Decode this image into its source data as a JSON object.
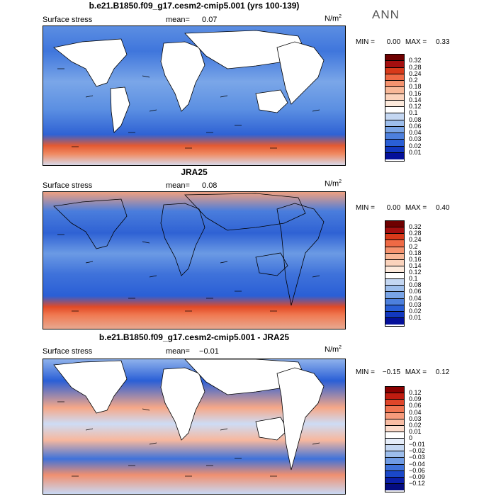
{
  "season": "ANN",
  "unit_base": "N/m",
  "unit_exp": "2",
  "panels": [
    {
      "title": "b.e21.B1850.f09_g17.cesm2-cmip5.001 (yrs 100-139)",
      "variable": "Surface stress",
      "mean_label": "mean=",
      "mean_value": "0.07",
      "min_label": "MIN =",
      "min_value": "0.00",
      "max_label": "MAX =",
      "max_value": "0.33",
      "colorbar": {
        "levels": [
          "0.32",
          "0.28",
          "0.24",
          "0.2",
          "0.18",
          "0.16",
          "0.14",
          "0.12",
          "0.1",
          "0.08",
          "0.06",
          "0.04",
          "0.03",
          "0.02",
          "0.01"
        ],
        "colors": [
          "#6e0000",
          "#a40f0f",
          "#d83a1a",
          "#ef6a45",
          "#f5936f",
          "#f8b898",
          "#fbd3bc",
          "#fdeadc",
          "#ffffff",
          "#c4d7f2",
          "#9dbeec",
          "#79a4e6",
          "#4d80dd",
          "#2a5fd6",
          "#1238c0",
          "#04109a"
        ]
      }
    },
    {
      "title": "JRA25",
      "variable": "Surface stress",
      "mean_label": "mean=",
      "mean_value": "0.08",
      "min_label": "MIN =",
      "min_value": "0.00",
      "max_label": "MAX =",
      "max_value": "0.40",
      "colorbar": {
        "levels": [
          "0.32",
          "0.28",
          "0.24",
          "0.2",
          "0.18",
          "0.16",
          "0.14",
          "0.12",
          "0.1",
          "0.08",
          "0.06",
          "0.04",
          "0.03",
          "0.02",
          "0.01"
        ],
        "colors": [
          "#6e0000",
          "#a40f0f",
          "#d83a1a",
          "#ef6a45",
          "#f5936f",
          "#f8b898",
          "#fbd3bc",
          "#fdeadc",
          "#ffffff",
          "#c4d7f2",
          "#9dbeec",
          "#79a4e6",
          "#4d80dd",
          "#2a5fd6",
          "#1238c0",
          "#04109a"
        ]
      }
    },
    {
      "title": "b.e21.B1850.f09_g17.cesm2-cmip5.001 - JRA25",
      "variable": "Surface stress",
      "mean_label": "mean=",
      "mean_value": "−0.01",
      "min_label": "MIN =",
      "min_value": "−0.15",
      "max_label": "MAX =",
      "max_value": "0.12",
      "colorbar": {
        "levels": [
          "0.12",
          "0.09",
          "0.06",
          "0.04",
          "0.03",
          "0.02",
          "0.01",
          "0",
          "−0.01",
          "−0.02",
          "−0.03",
          "−0.04",
          "−0.06",
          "−0.09",
          "−0.12"
        ],
        "colors": [
          "#8a0000",
          "#c01c10",
          "#e0462a",
          "#f07552",
          "#f69b7c",
          "#f9bda4",
          "#fcdccc",
          "#ffffff",
          "#e6eefa",
          "#c4d7f2",
          "#9dbeec",
          "#6f9be4",
          "#3f72da",
          "#1a48c9",
          "#0b1fa8",
          "#040c80"
        ]
      }
    }
  ]
}
